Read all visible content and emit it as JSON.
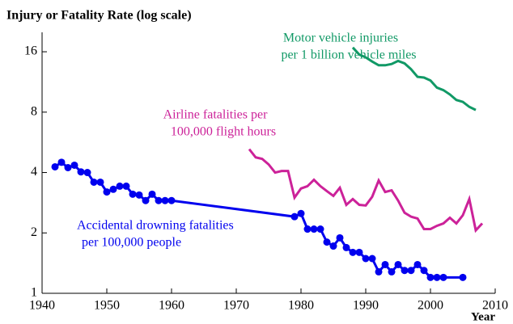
{
  "chart_data": {
    "type": "line",
    "title": "Injury or Fatality Rate (log scale)",
    "x_label": "Year",
    "log_y": true,
    "xlim": [
      1940,
      2010
    ],
    "xticks": [
      1940,
      1950,
      1960,
      1970,
      1980,
      1990,
      2000,
      2010
    ],
    "ylim": [
      1,
      20
    ],
    "yticks": [
      1,
      2,
      4,
      8,
      16
    ],
    "series": [
      {
        "name": [
          "Motor vehicle injuries",
          "per 1 billion vehicle miles"
        ],
        "color": "#119966",
        "markers": false,
        "x": [
          1988,
          1989,
          1990,
          1991,
          1992,
          1993,
          1994,
          1995,
          1996,
          1997,
          1998,
          1999,
          2000,
          2001,
          2002,
          2003,
          2004,
          2005,
          2006,
          2007
        ],
        "values": [
          16.8,
          15.5,
          15.0,
          14.3,
          13.7,
          13.7,
          13.9,
          14.4,
          14.0,
          13.1,
          12.0,
          11.9,
          11.5,
          10.6,
          10.3,
          9.8,
          9.2,
          9.0,
          8.5,
          8.2
        ]
      },
      {
        "name": [
          "Airline fatalities per",
          "100,000 flight hours"
        ],
        "color": "#cc2299",
        "markers": false,
        "x": [
          1972,
          1973,
          1974,
          1975,
          1976,
          1977,
          1978,
          1979,
          1980,
          1981,
          1982,
          1983,
          1984,
          1985,
          1986,
          1987,
          1988,
          1989,
          1990,
          1991,
          1992,
          1993,
          1994,
          1995,
          1996,
          1997,
          1998,
          1999,
          2000,
          2001,
          2002,
          2003,
          2004,
          2005,
          2006,
          2007,
          2008
        ],
        "values": [
          5.23,
          4.76,
          4.68,
          4.39,
          4.0,
          4.07,
          4.07,
          3.0,
          3.33,
          3.42,
          3.68,
          3.42,
          3.23,
          3.06,
          3.36,
          2.76,
          2.95,
          2.76,
          2.74,
          3.03,
          3.65,
          3.2,
          3.26,
          2.9,
          2.52,
          2.41,
          2.36,
          2.09,
          2.09,
          2.17,
          2.23,
          2.38,
          2.23,
          2.45,
          2.95,
          2.06,
          2.23
        ]
      },
      {
        "name": [
          "Accidental drowning fatalities",
          "per 100,000 people"
        ],
        "color": "#0000ee",
        "markers": true,
        "x": [
          1942,
          1943,
          1944,
          1945,
          1946,
          1947,
          1948,
          1949,
          1950,
          1951,
          1952,
          1953,
          1954,
          1955,
          1956,
          1957,
          1958,
          1959,
          1960,
          1979,
          1980,
          1981,
          1982,
          1983,
          1984,
          1985,
          1986,
          1987,
          1988,
          1989,
          1990,
          1991,
          1992,
          1993,
          1994,
          1995,
          1996,
          1997,
          1998,
          1999,
          2000,
          2001,
          2002,
          2005
        ],
        "values": [
          4.27,
          4.5,
          4.23,
          4.35,
          4.03,
          4.0,
          3.58,
          3.58,
          3.2,
          3.3,
          3.42,
          3.42,
          3.12,
          3.09,
          2.9,
          3.12,
          2.9,
          2.9,
          2.9,
          2.41,
          2.5,
          2.09,
          2.09,
          2.09,
          1.8,
          1.72,
          1.89,
          1.69,
          1.6,
          1.6,
          1.49,
          1.49,
          1.28,
          1.39,
          1.28,
          1.39,
          1.3,
          1.3,
          1.39,
          1.3,
          1.2,
          1.2,
          1.2,
          1.2
        ]
      }
    ]
  }
}
